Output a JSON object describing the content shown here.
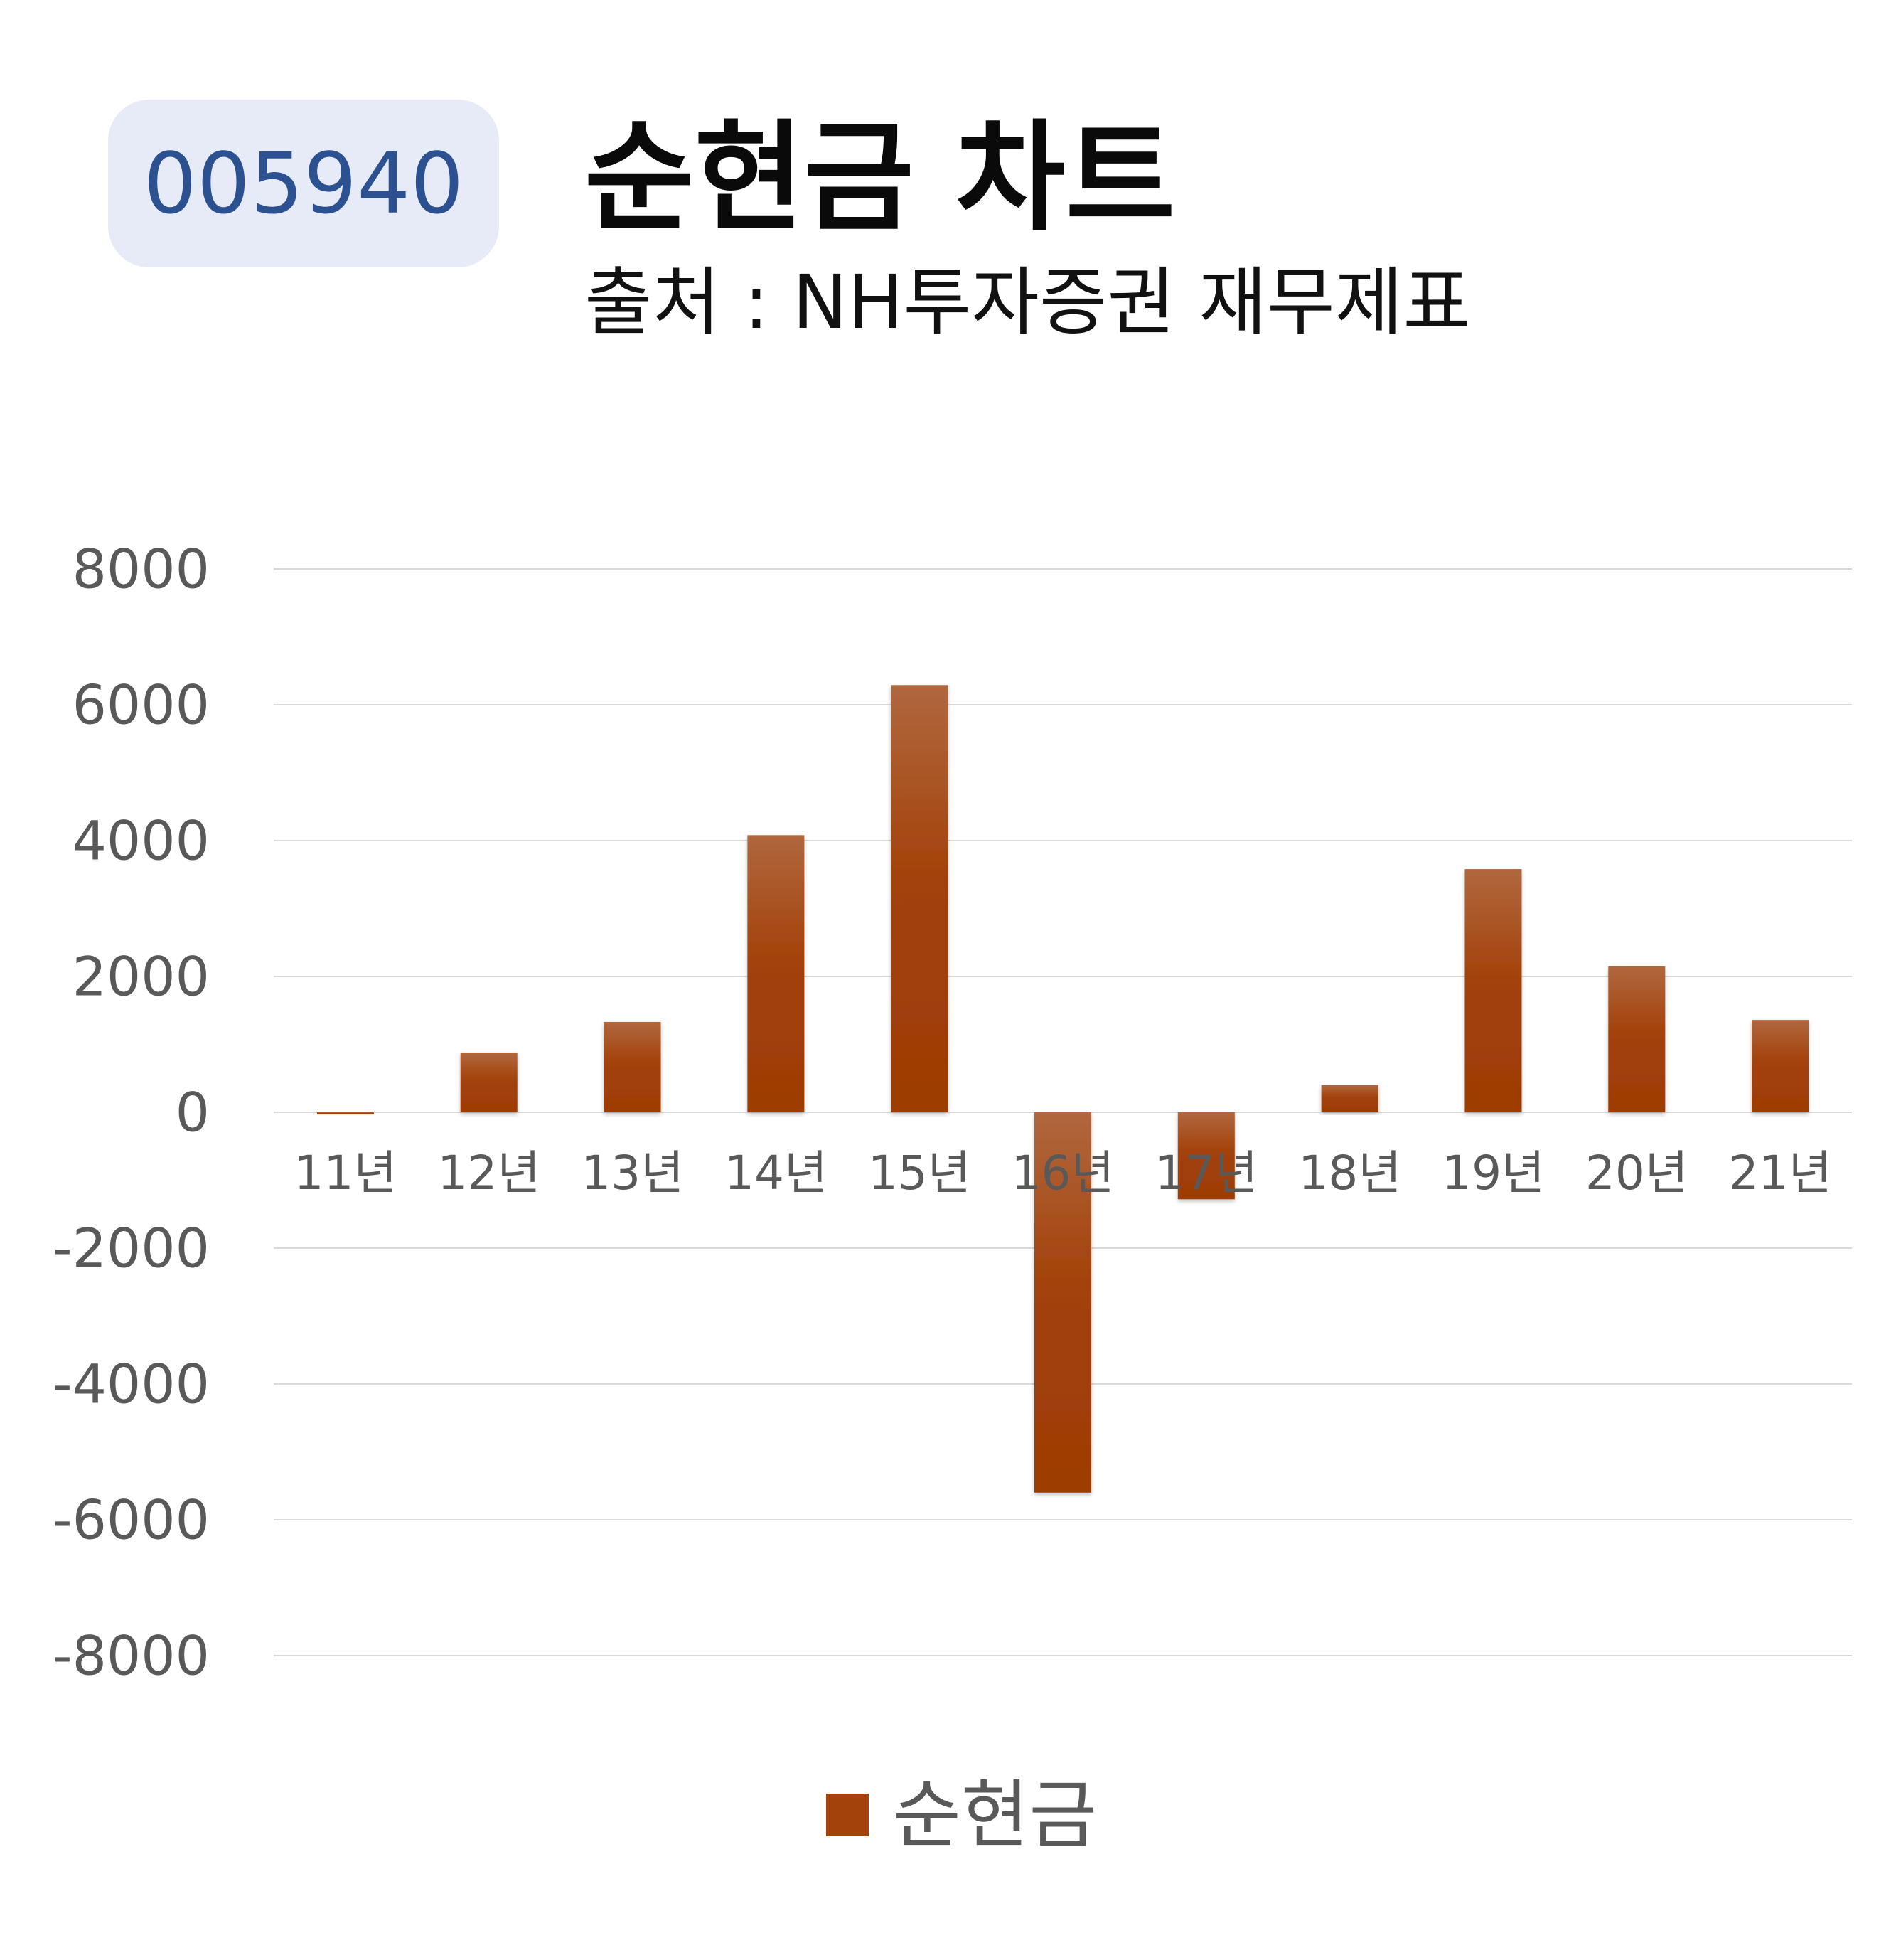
{
  "header": {
    "code": "005940",
    "title": "순현금 차트",
    "subtitle": "출처 : NH투자증권 재무제표"
  },
  "colors": {
    "bar": "#a3420a",
    "bar_light": "#b0673f",
    "badge_bg": "#e6ebf7",
    "badge_text": "#2c5191",
    "grid": "#d9d9d9",
    "axis_text": "#595959"
  },
  "chart_data": {
    "type": "bar",
    "categories": [
      "11년",
      "12년",
      "13년",
      "14년",
      "15년",
      "16년",
      "17년",
      "18년",
      "19년",
      "20년",
      "21년"
    ],
    "series": [
      {
        "name": "순현금",
        "values": [
          -20,
          880,
          1330,
          4080,
          6290,
          -5600,
          -1280,
          400,
          3580,
          2150,
          1360
        ]
      }
    ],
    "ylim": [
      -8000,
      8000
    ],
    "yticks": [
      8000,
      6000,
      4000,
      2000,
      0,
      -2000,
      -4000,
      -6000,
      -8000
    ],
    "grid": true,
    "legend": "bottom",
    "xlabel": "",
    "ylabel": ""
  }
}
